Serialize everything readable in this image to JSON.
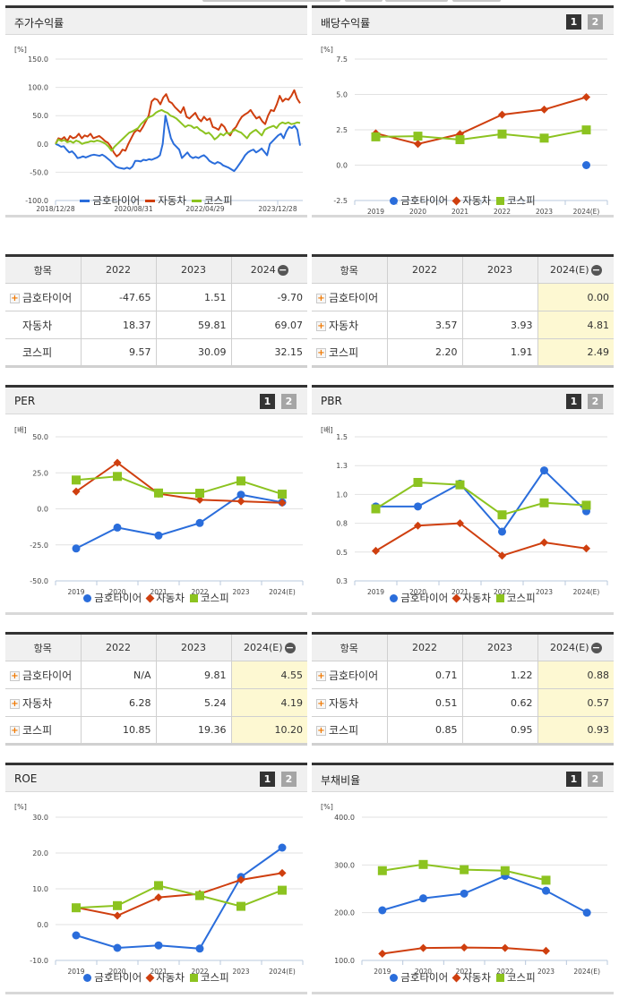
{
  "legend": {
    "series": [
      "금호타이어",
      "자동차",
      "코스피"
    ],
    "colors": {
      "금호타이어": "#2a6ddb",
      "자동차": "#cf3f0f",
      "코스피": "#8cc320"
    }
  },
  "pager": {
    "b1": "1",
    "b2": "2"
  },
  "stock_return": {
    "title": "주가수익률",
    "unit": "[%]",
    "table": {
      "headers": [
        "항목",
        "2022",
        "2023",
        "2024"
      ],
      "rows": [
        {
          "name": "금호타이어",
          "v": [
            "-47.65",
            "1.51",
            "-9.70"
          ],
          "expandable": true
        },
        {
          "name": "자동차",
          "v": [
            "18.37",
            "59.81",
            "69.07"
          ],
          "expandable": false
        },
        {
          "name": "코스피",
          "v": [
            "9.57",
            "30.09",
            "32.15"
          ],
          "expandable": false
        }
      ]
    }
  },
  "dividend": {
    "title": "배당수익률",
    "unit": "[%]",
    "table": {
      "headers": [
        "항목",
        "2022",
        "2023",
        "2024(E)"
      ],
      "rows": [
        {
          "name": "금호타이어",
          "v": [
            "",
            "",
            "0.00"
          ]
        },
        {
          "name": "자동차",
          "v": [
            "3.57",
            "3.93",
            "4.81"
          ]
        },
        {
          "name": "코스피",
          "v": [
            "2.20",
            "1.91",
            "2.49"
          ]
        }
      ]
    }
  },
  "per": {
    "title": "PER",
    "unit": "[배]",
    "table": {
      "headers": [
        "항목",
        "2022",
        "2023",
        "2024(E)"
      ],
      "rows": [
        {
          "name": "금호타이어",
          "v": [
            "N/A",
            "9.81",
            "4.55"
          ]
        },
        {
          "name": "자동차",
          "v": [
            "6.28",
            "5.24",
            "4.19"
          ]
        },
        {
          "name": "코스피",
          "v": [
            "10.85",
            "19.36",
            "10.20"
          ]
        }
      ]
    }
  },
  "pbr": {
    "title": "PBR",
    "unit": "[배]",
    "table": {
      "headers": [
        "항목",
        "2022",
        "2023",
        "2024(E)"
      ],
      "rows": [
        {
          "name": "금호타이어",
          "v": [
            "0.71",
            "1.22",
            "0.88"
          ]
        },
        {
          "name": "자동차",
          "v": [
            "0.51",
            "0.62",
            "0.57"
          ]
        },
        {
          "name": "코스피",
          "v": [
            "0.85",
            "0.95",
            "0.93"
          ]
        }
      ]
    }
  },
  "roe": {
    "title": "ROE",
    "unit": "[%]"
  },
  "debt": {
    "title": "부채비율",
    "unit": "[%]"
  },
  "chart_data": [
    {
      "id": "stock_return",
      "type": "line",
      "title": "주가수익률",
      "ylabel": "[%]",
      "ylim": [
        -100,
        150
      ],
      "yticks": [
        "150.0",
        "100.0",
        "50.0",
        "0.0",
        "-50.0",
        "-100.0"
      ],
      "xticks": [
        "2018/12/28",
        "2020/08/31",
        "2022/04/29",
        "2023/12/28"
      ],
      "grid": true,
      "legend_position": "bottom",
      "series": [
        {
          "name": "금호타이어",
          "values": [
            0,
            -2,
            -5,
            -4,
            -10,
            -15,
            -13,
            -18,
            -25,
            -24,
            -22,
            -24,
            -22,
            -20,
            -19,
            -20,
            -21,
            -19,
            -22,
            -26,
            -30,
            -35,
            -40,
            -42,
            -43,
            -44,
            -42,
            -44,
            -40,
            -30,
            -30,
            -31,
            -28,
            -29,
            -27,
            -28,
            -26,
            -24,
            -20,
            0,
            50,
            30,
            10,
            0,
            -5,
            -10,
            -25,
            -20,
            -15,
            -22,
            -25,
            -23,
            -25,
            -22,
            -20,
            -24,
            -30,
            -33,
            -35,
            -32,
            -34,
            -38,
            -40,
            -42,
            -45,
            -48,
            -42,
            -35,
            -28,
            -20,
            -15,
            -12,
            -10,
            -15,
            -12,
            -8,
            -14,
            -20,
            0,
            5,
            10,
            15,
            18,
            10,
            22,
            30,
            28,
            32,
            25,
            -3
          ]
        },
        {
          "name": "자동차",
          "values": [
            0,
            10,
            8,
            12,
            5,
            14,
            10,
            12,
            18,
            10,
            15,
            13,
            18,
            10,
            12,
            14,
            10,
            5,
            2,
            -5,
            -15,
            -22,
            -18,
            -10,
            -12,
            0,
            10,
            20,
            25,
            22,
            30,
            40,
            50,
            75,
            80,
            78,
            70,
            82,
            88,
            75,
            72,
            65,
            60,
            55,
            65,
            48,
            45,
            50,
            55,
            45,
            40,
            48,
            42,
            45,
            30,
            28,
            25,
            35,
            30,
            20,
            15,
            25,
            30,
            40,
            48,
            52,
            55,
            60,
            52,
            45,
            48,
            40,
            35,
            50,
            60,
            58,
            70,
            85,
            75,
            80,
            78,
            85,
            95,
            80,
            72
          ]
        },
        {
          "name": "코스피",
          "values": [
            0,
            8,
            5,
            7,
            3,
            5,
            2,
            6,
            4,
            0,
            2,
            3,
            5,
            4,
            6,
            5,
            3,
            0,
            -5,
            -12,
            -5,
            0,
            5,
            10,
            15,
            20,
            22,
            25,
            28,
            35,
            40,
            45,
            48,
            50,
            55,
            58,
            60,
            57,
            55,
            50,
            48,
            45,
            40,
            35,
            30,
            33,
            32,
            28,
            30,
            25,
            22,
            18,
            20,
            15,
            8,
            12,
            18,
            15,
            20,
            18,
            22,
            25,
            22,
            20,
            15,
            10,
            18,
            22,
            25,
            20,
            15,
            25,
            28,
            30,
            32,
            28,
            35,
            38,
            36,
            38,
            35,
            36,
            38,
            37
          ]
        }
      ]
    },
    {
      "id": "dividend",
      "type": "line",
      "title": "배당수익률",
      "ylabel": "[%]",
      "ylim": [
        -2.5,
        7.5
      ],
      "yticks": [
        "7.5",
        "5.0",
        "2.5",
        "0.0",
        "-2.5"
      ],
      "categories": [
        "2019",
        "2020",
        "2021",
        "2022",
        "2023",
        "2024(E)"
      ],
      "grid": true,
      "legend_position": "bottom",
      "series": [
        {
          "name": "금호타이어",
          "values": [
            null,
            null,
            null,
            null,
            null,
            0.0
          ]
        },
        {
          "name": "자동차",
          "values": [
            2.25,
            1.5,
            2.2,
            3.57,
            3.93,
            4.81
          ]
        },
        {
          "name": "코스피",
          "values": [
            2.0,
            2.05,
            1.8,
            2.2,
            1.91,
            2.49
          ]
        }
      ]
    },
    {
      "id": "per",
      "type": "line",
      "title": "PER",
      "ylabel": "[배]",
      "ylim": [
        -50,
        50
      ],
      "yticks": [
        "50.0",
        "25.0",
        "0.0",
        "-25.0",
        "-50.0"
      ],
      "categories": [
        "2019",
        "2020",
        "2021",
        "2022",
        "2023",
        "2024(E)"
      ],
      "grid": true,
      "legend_position": "bottom",
      "series": [
        {
          "name": "금호타이어",
          "values": [
            -27.5,
            -13.0,
            -18.5,
            -9.8,
            9.81,
            4.55
          ]
        },
        {
          "name": "자동차",
          "values": [
            12.0,
            32.0,
            10.5,
            6.28,
            5.24,
            4.19
          ]
        },
        {
          "name": "코스피",
          "values": [
            20.0,
            22.5,
            11.0,
            10.85,
            19.36,
            10.2
          ]
        }
      ]
    },
    {
      "id": "pbr",
      "type": "line",
      "title": "PBR",
      "ylabel": "[배]",
      "ylim": [
        0.3,
        1.5
      ],
      "yticks": [
        "1.5",
        "1.3",
        "1.0",
        "0.8",
        "0.5",
        "0.3"
      ],
      "categories": [
        "2019",
        "2020",
        "2021",
        "2022",
        "2023",
        "2024(E)"
      ],
      "grid": true,
      "legend_position": "bottom",
      "series": [
        {
          "name": "금호타이어",
          "values": [
            0.92,
            0.92,
            1.11,
            0.71,
            1.22,
            0.88
          ]
        },
        {
          "name": "자동차",
          "values": [
            0.55,
            0.76,
            0.78,
            0.51,
            0.62,
            0.57
          ]
        },
        {
          "name": "코스피",
          "values": [
            0.9,
            1.12,
            1.1,
            0.85,
            0.95,
            0.93
          ]
        }
      ]
    },
    {
      "id": "roe",
      "type": "line",
      "title": "ROE",
      "ylabel": "[%]",
      "ylim": [
        -10,
        30
      ],
      "yticks": [
        "30.0",
        "20.0",
        "10.0",
        "0.0",
        "-10.0"
      ],
      "categories": [
        "2019",
        "2020",
        "2021",
        "2022",
        "2023",
        "2024(E)"
      ],
      "grid": true,
      "legend_position": "bottom",
      "series": [
        {
          "name": "금호타이어",
          "values": [
            -3.0,
            -6.5,
            -5.8,
            -6.7,
            13.3,
            21.5
          ]
        },
        {
          "name": "자동차",
          "values": [
            4.8,
            2.5,
            7.6,
            8.6,
            12.5,
            14.4
          ]
        },
        {
          "name": "코스피",
          "values": [
            4.7,
            5.3,
            10.9,
            8.1,
            5.1,
            9.6
          ]
        }
      ]
    },
    {
      "id": "debt",
      "type": "line",
      "title": "부채비율",
      "ylabel": "[%]",
      "ylim": [
        100,
        400
      ],
      "yticks": [
        "400.0",
        "300.0",
        "200.0",
        "100.0"
      ],
      "categories": [
        "2019",
        "2020",
        "2021",
        "2022",
        "2023",
        "2024(E)"
      ],
      "grid": true,
      "legend_position": "bottom",
      "series": [
        {
          "name": "금호타이어",
          "values": [
            205,
            230,
            240,
            277,
            246,
            200
          ]
        },
        {
          "name": "자동차",
          "values": [
            114,
            126,
            127,
            126,
            120,
            null
          ]
        },
        {
          "name": "코스피",
          "values": [
            288,
            301,
            290,
            288,
            268,
            null
          ]
        }
      ]
    }
  ]
}
